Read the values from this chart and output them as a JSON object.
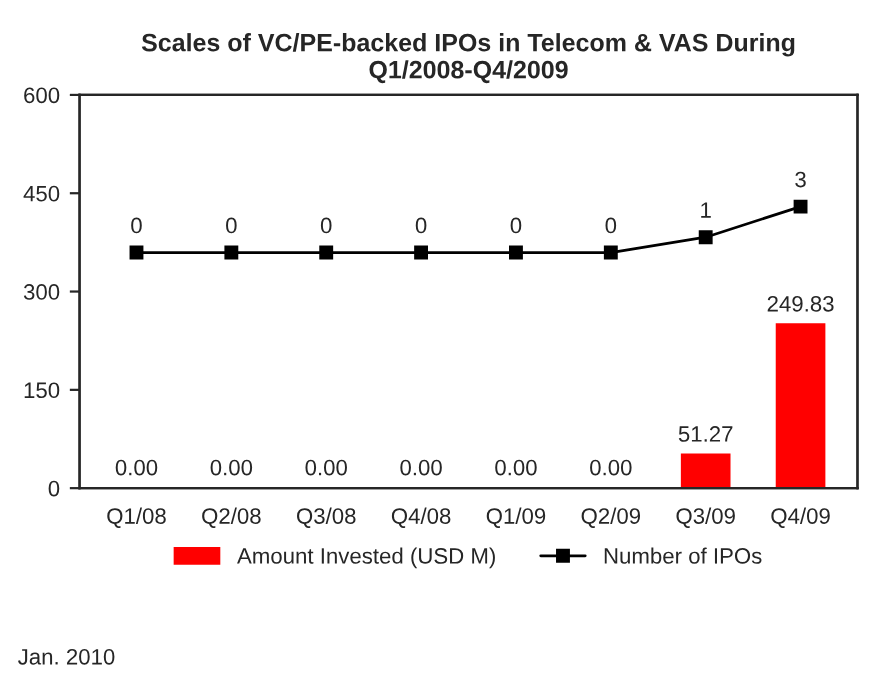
{
  "chart_data": {
    "type": "bar",
    "title": "Scales of VC/PE-backed IPOs in Telecom & VAS During\nQ1/2008-Q4/2009",
    "categories": [
      "Q1/08",
      "Q2/08",
      "Q3/08",
      "Q4/08",
      "Q1/09",
      "Q2/09",
      "Q3/09",
      "Q4/09"
    ],
    "series": [
      {
        "name": "Amount Invested (USD M)",
        "color": "#ff0000",
        "values": [
          0,
          0,
          0,
          0,
          0,
          0,
          51.27,
          249.83
        ],
        "value_labels": [
          "0.00",
          "0.00",
          "0.00",
          "0.00",
          "0.00",
          "0.00",
          "51.27",
          "249.83"
        ]
      },
      {
        "name": "Number of IPOs",
        "type": "line",
        "axis": "y2",
        "color": "#000000",
        "marker": "square",
        "values": [
          0,
          0,
          0,
          0,
          0,
          0,
          1,
          3
        ],
        "value_labels": [
          "0",
          "0",
          "0",
          "0",
          "0",
          "0",
          "1",
          "3"
        ]
      }
    ],
    "ylim": [
      0,
      600
    ],
    "yticks": [
      0,
      150,
      300,
      450,
      600
    ],
    "y2lim": [
      -15.4,
      10.3
    ],
    "legend": "bottom",
    "grid": false,
    "annotations": [
      "Jan. 2010"
    ]
  }
}
